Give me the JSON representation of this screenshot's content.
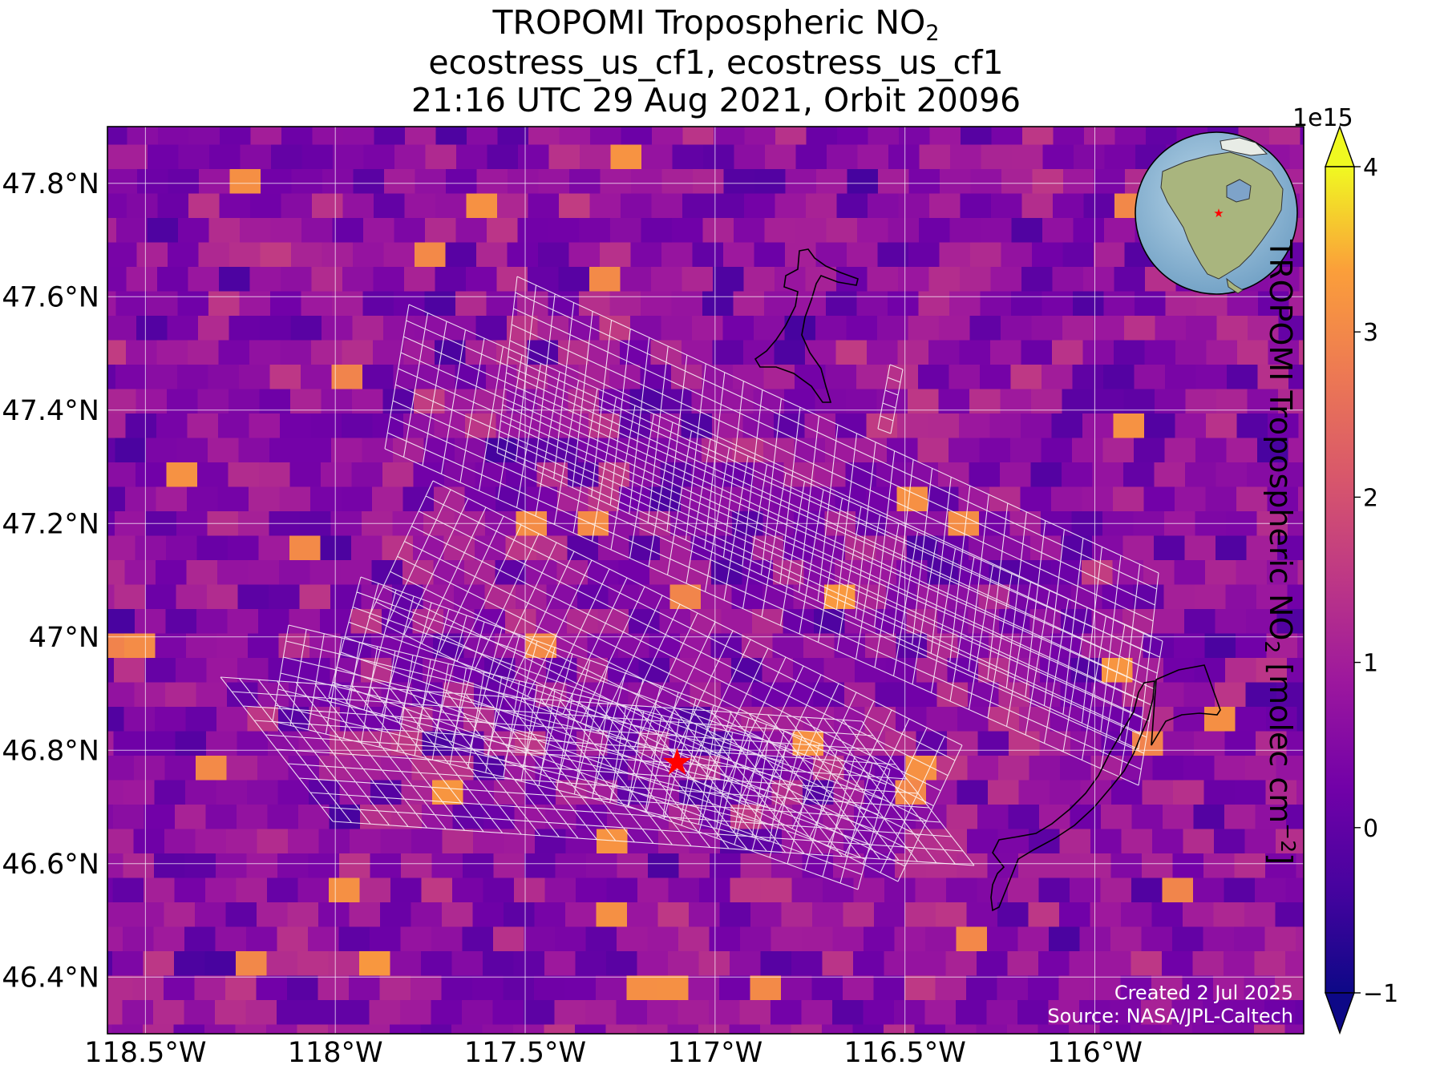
{
  "title": {
    "line1_main": "TROPOMI Tropospheric NO",
    "line1_sub": "2",
    "line2": "ecostress_us_cf1, ecostress_us_cf1",
    "line3": "21:16 UTC 29 Aug 2021, Orbit 20096"
  },
  "map": {
    "lon_range": [
      -118.6,
      -115.45
    ],
    "lat_range": [
      46.3,
      47.9
    ],
    "lon_ticks": [
      {
        "value": -118.5,
        "label": "118.5°W"
      },
      {
        "value": -118.0,
        "label": "118°W"
      },
      {
        "value": -117.5,
        "label": "117.5°W"
      },
      {
        "value": -117.0,
        "label": "117°W"
      },
      {
        "value": -116.5,
        "label": "116.5°W"
      },
      {
        "value": -116.0,
        "label": "116°W"
      }
    ],
    "lat_ticks": [
      {
        "value": 47.8,
        "label": "47.8°N"
      },
      {
        "value": 47.6,
        "label": "47.6°N"
      },
      {
        "value": 47.4,
        "label": "47.4°N"
      },
      {
        "value": 47.2,
        "label": "47.2°N"
      },
      {
        "value": 47.0,
        "label": "47°N"
      },
      {
        "value": 46.8,
        "label": "46.8°N"
      },
      {
        "value": 46.6,
        "label": "46.6°N"
      },
      {
        "value": 46.4,
        "label": "46.4°N"
      }
    ],
    "site_marker": {
      "lon": -117.1,
      "lat": 46.78,
      "color": "#ff0000",
      "icon": "red-star"
    },
    "grid_color": "#ffffff",
    "credit_line1": "Created 2 Jul 2025",
    "credit_line2": "Source: NASA/JPL-Caltech"
  },
  "colorbar": {
    "colormap": "plasma",
    "min": -1,
    "max": 4,
    "extend": "both",
    "multiplier": "1e15",
    "ticks": [
      {
        "value": 4,
        "label": "4"
      },
      {
        "value": 3,
        "label": "3"
      },
      {
        "value": 2,
        "label": "2"
      },
      {
        "value": 1,
        "label": "1"
      },
      {
        "value": 0,
        "label": "0"
      },
      {
        "value": -1,
        "label": "−1"
      }
    ],
    "label_main": "TROPOMI Tropospheric NO",
    "label_sub": "2",
    "label_units_start": " [molec cm",
    "label_units_sup": "−2",
    "label_units_end": "]"
  },
  "globe_inset": {
    "icon": "globe-north-america-icon",
    "marker_color": "#ff0000"
  }
}
